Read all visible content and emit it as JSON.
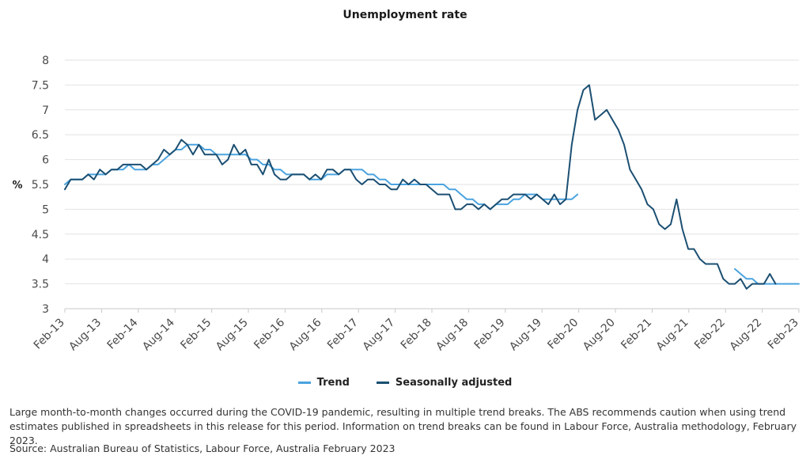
{
  "chart_data": {
    "type": "line",
    "title": "Unemployment rate",
    "xlabel": "",
    "ylabel": "%",
    "ylim": [
      3,
      8
    ],
    "yticks": [
      "3",
      "3.5",
      "4",
      "4.5",
      "5",
      "5.5",
      "6",
      "6.5",
      "7",
      "7.5",
      "8"
    ],
    "xticks": [
      "Feb-13",
      "Aug-13",
      "Feb-14",
      "Aug-14",
      "Feb-15",
      "Aug-15",
      "Feb-16",
      "Aug-16",
      "Feb-17",
      "Aug-17",
      "Feb-18",
      "Aug-18",
      "Feb-19",
      "Aug-19",
      "Feb-20",
      "Aug-20",
      "Feb-21",
      "Aug-21",
      "Feb-22",
      "Aug-22",
      "Feb-23"
    ],
    "grid": "horizontal",
    "legend_position": "bottom",
    "series": [
      {
        "name": "Trend",
        "color": "#4aa3df",
        "start": "Feb-13",
        "values": [
          5.5,
          5.6,
          5.6,
          5.6,
          5.7,
          5.7,
          5.7,
          5.7,
          5.8,
          5.8,
          5.8,
          5.9,
          5.8,
          5.8,
          5.8,
          5.9,
          5.9,
          6.0,
          6.1,
          6.2,
          6.2,
          6.3,
          6.3,
          6.3,
          6.2,
          6.2,
          6.1,
          6.1,
          6.1,
          6.1,
          6.1,
          6.1,
          6.0,
          6.0,
          5.9,
          5.9,
          5.8,
          5.8,
          5.7,
          5.7,
          5.7,
          5.7,
          5.6,
          5.6,
          5.6,
          5.7,
          5.7,
          5.7,
          5.8,
          5.8,
          5.8,
          5.8,
          5.7,
          5.7,
          5.6,
          5.6,
          5.5,
          5.5,
          5.5,
          5.5,
          5.5,
          5.5,
          5.5,
          5.5,
          5.5,
          5.5,
          5.4,
          5.4,
          5.3,
          5.2,
          5.2,
          5.1,
          5.1,
          5.0,
          5.1,
          5.1,
          5.1,
          5.2,
          5.2,
          5.3,
          5.3,
          5.3,
          5.2,
          5.2,
          5.2,
          5.2,
          5.2,
          5.2,
          5.3,
          null,
          null,
          null,
          null,
          null,
          null,
          null,
          null,
          null,
          null,
          null,
          null,
          null,
          null,
          null,
          null,
          null,
          null,
          null,
          null,
          null,
          null,
          null,
          null,
          null,
          null,
          3.8,
          3.7,
          3.6,
          3.6,
          3.5,
          3.5,
          3.5,
          3.5,
          3.5,
          3.5,
          3.5,
          3.5
        ]
      },
      {
        "name": "Seasonally adjusted",
        "color": "#1b4f72",
        "start": "Feb-13",
        "values": [
          5.4,
          5.6,
          5.6,
          5.6,
          5.7,
          5.6,
          5.8,
          5.7,
          5.8,
          5.8,
          5.9,
          5.9,
          5.9,
          5.9,
          5.8,
          5.9,
          6.0,
          6.2,
          6.1,
          6.2,
          6.4,
          6.3,
          6.1,
          6.3,
          6.1,
          6.1,
          6.1,
          5.9,
          6.0,
          6.3,
          6.1,
          6.2,
          5.9,
          5.9,
          5.7,
          6.0,
          5.7,
          5.6,
          5.6,
          5.7,
          5.7,
          5.7,
          5.6,
          5.7,
          5.6,
          5.8,
          5.8,
          5.7,
          5.8,
          5.8,
          5.6,
          5.5,
          5.6,
          5.6,
          5.5,
          5.5,
          5.4,
          5.4,
          5.6,
          5.5,
          5.6,
          5.5,
          5.5,
          5.4,
          5.3,
          5.3,
          5.3,
          5.0,
          5.0,
          5.1,
          5.1,
          5.0,
          5.1,
          5.0,
          5.1,
          5.2,
          5.2,
          5.3,
          5.3,
          5.3,
          5.2,
          5.3,
          5.2,
          5.1,
          5.3,
          5.1,
          5.2,
          6.3,
          7.0,
          7.4,
          7.5,
          6.8,
          6.9,
          7.0,
          6.8,
          6.6,
          6.3,
          5.8,
          5.6,
          5.4,
          5.1,
          5.0,
          4.7,
          4.6,
          4.7,
          5.2,
          4.6,
          4.2,
          4.2,
          4.0,
          3.9,
          3.9,
          3.9,
          3.6,
          3.5,
          3.5,
          3.6,
          3.4,
          3.5,
          3.5,
          3.5,
          3.7,
          3.5
        ]
      }
    ]
  },
  "legend": {
    "trend_label": "Trend",
    "sa_label": "Seasonally adjusted"
  },
  "footer": {
    "note": "Large month-to-month changes occurred during the COVID-19 pandemic, resulting in multiple trend breaks. The ABS recommends caution when using trend estimates published in spreadsheets in this release for this period. Information on trend breaks can be found in Labour Force, Australia methodology, February 2023.",
    "source": "Source: Australian Bureau of Statistics, Labour Force, Australia February 2023"
  }
}
